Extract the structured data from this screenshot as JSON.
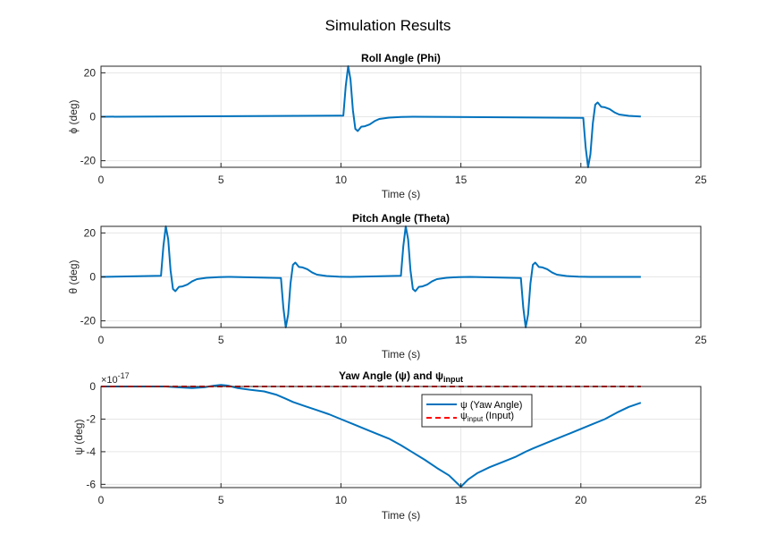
{
  "figure_title": "Simulation Results",
  "colors": {
    "series": "#0072BD",
    "input": "#FF0000",
    "grid": "#E6E6E6",
    "axis": "#262626"
  },
  "chart_data": [
    {
      "type": "line",
      "title": "Roll Angle (Phi)",
      "xlabel": "Time (s)",
      "ylabel": "ϕ (deg)",
      "xlim": [
        0,
        25
      ],
      "ylim": [
        -23,
        23
      ],
      "xticks": [
        "0",
        "5",
        "10",
        "15",
        "20",
        "25"
      ],
      "xtick_values": [
        0,
        5,
        10,
        15,
        20,
        25
      ],
      "yticks": [
        "-20",
        "0",
        "20"
      ],
      "ytick_values": [
        -20,
        0,
        20
      ],
      "grid": true,
      "series": [
        {
          "x": [
            0,
            10.1,
            10.2,
            10.3,
            10.4,
            10.5,
            10.6,
            10.7,
            10.85,
            11.0,
            11.2,
            11.4,
            11.6,
            12.0,
            12.5,
            13.0,
            20.1,
            20.2,
            20.3,
            20.4,
            20.5,
            20.6,
            20.7,
            20.85,
            21.0,
            21.2,
            21.4,
            21.6,
            22.0,
            22.5
          ],
          "y": [
            0,
            0.5,
            14,
            23,
            17,
            3,
            -5.5,
            -6.5,
            -4.5,
            -4.3,
            -3.5,
            -2,
            -1,
            -0.4,
            -0.1,
            0,
            -0.5,
            -14,
            -23,
            -17,
            -3,
            5.5,
            6.5,
            4.5,
            4.3,
            3.5,
            2,
            1,
            0.4,
            0.1
          ]
        }
      ]
    },
    {
      "type": "line",
      "title": "Pitch Angle (Theta)",
      "xlabel": "Time (s)",
      "ylabel": "θ (deg)",
      "xlim": [
        0,
        25
      ],
      "ylim": [
        -23,
        23
      ],
      "xticks": [
        "0",
        "5",
        "10",
        "15",
        "20",
        "25"
      ],
      "xtick_values": [
        0,
        5,
        10,
        15,
        20,
        25
      ],
      "yticks": [
        "-20",
        "0",
        "20"
      ],
      "ytick_values": [
        -20,
        0,
        20
      ],
      "grid": true,
      "series": [
        {
          "x": [
            0,
            2.5,
            2.6,
            2.7,
            2.8,
            2.9,
            3.0,
            3.1,
            3.25,
            3.4,
            3.6,
            3.8,
            4.0,
            4.4,
            4.9,
            5.4,
            7.5,
            7.6,
            7.7,
            7.8,
            7.9,
            8.0,
            8.1,
            8.25,
            8.4,
            8.6,
            8.8,
            9.0,
            9.4,
            9.9,
            10.4,
            12.5,
            12.6,
            12.7,
            12.8,
            12.9,
            13.0,
            13.1,
            13.25,
            13.4,
            13.6,
            13.8,
            14.0,
            14.4,
            14.9,
            15.4,
            17.5,
            17.6,
            17.7,
            17.8,
            17.9,
            18.0,
            18.1,
            18.25,
            18.4,
            18.6,
            18.8,
            19.0,
            19.4,
            19.9,
            20.4,
            22.5
          ],
          "y": [
            0,
            0.5,
            14,
            23,
            17,
            3,
            -5.5,
            -6.5,
            -4.5,
            -4.3,
            -3.5,
            -2,
            -1,
            -0.4,
            -0.1,
            0,
            -0.5,
            -14,
            -23,
            -17,
            -3,
            5.5,
            6.5,
            4.5,
            4.3,
            3.5,
            2,
            1,
            0.4,
            0.1,
            0,
            0.5,
            14,
            23,
            17,
            3,
            -5.5,
            -6.5,
            -4.5,
            -4.3,
            -3.5,
            -2,
            -1,
            -0.4,
            -0.1,
            0,
            -0.5,
            -14,
            -23,
            -17,
            -3,
            5.5,
            6.5,
            4.5,
            4.3,
            3.5,
            2,
            1,
            0.4,
            0.1,
            0,
            0
          ]
        }
      ]
    },
    {
      "type": "line",
      "title_main": "Yaw Angle (ψ) and ψ",
      "title_sub": "input",
      "xlabel": "Time (s)",
      "ylabel": "ψ (deg)",
      "xlim": [
        0,
        25
      ],
      "ylim": [
        -6.2,
        0
      ],
      "exponent_base": "×10",
      "exponent_power": "-17",
      "xticks": [
        "0",
        "5",
        "10",
        "15",
        "20",
        "25"
      ],
      "xtick_values": [
        0,
        5,
        10,
        15,
        20,
        25
      ],
      "yticks": [
        "0",
        "-2",
        "-4",
        "-6"
      ],
      "ytick_values": [
        0,
        -2,
        -4,
        -6
      ],
      "grid": true,
      "legend_placement": "top-right",
      "legend": [
        {
          "main": "ψ (Yaw Angle)",
          "sub": "",
          "after": "",
          "style": "solid"
        },
        {
          "main": "ψ",
          "sub": "input",
          "after": " (Input)",
          "style": "dashed"
        }
      ],
      "series": [
        {
          "x": [
            0,
            1,
            2,
            2.7,
            3.2,
            3.8,
            4.3,
            4.7,
            5.0,
            5.3,
            5.7,
            6.2,
            6.8,
            7.3,
            7.7,
            8.0,
            8.5,
            9.0,
            9.5,
            10.0,
            10.5,
            11.0,
            11.5,
            12.0,
            12.5,
            13.0,
            13.5,
            14.0,
            14.5,
            15.0,
            15.3,
            15.7,
            16.2,
            16.8,
            17.3,
            17.7,
            18.0,
            18.5,
            19.0,
            19.5,
            20.0,
            20.5,
            21.0,
            21.5,
            22.0,
            22.5
          ],
          "y": [
            0,
            0,
            0,
            0,
            -0.05,
            -0.1,
            -0.05,
            0.05,
            0.1,
            0.05,
            -0.1,
            -0.2,
            -0.3,
            -0.5,
            -0.75,
            -0.95,
            -1.2,
            -1.45,
            -1.7,
            -2.0,
            -2.3,
            -2.6,
            -2.9,
            -3.2,
            -3.6,
            -4.05,
            -4.5,
            -5.0,
            -5.45,
            -6.15,
            -5.7,
            -5.3,
            -4.95,
            -4.6,
            -4.3,
            -4.0,
            -3.8,
            -3.5,
            -3.2,
            -2.9,
            -2.6,
            -2.3,
            -2.0,
            -1.6,
            -1.25,
            -1.0
          ]
        },
        {
          "x": [
            0,
            22.5
          ],
          "y": [
            0,
            0
          ],
          "dashed": true
        }
      ]
    }
  ]
}
